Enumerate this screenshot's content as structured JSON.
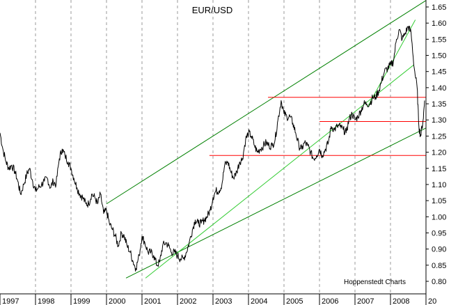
{
  "chart_data": {
    "type": "line",
    "title": "EUR/USD",
    "annotation": "Hoppenstedt Charts",
    "x_tick_labels": [
      "1997",
      "1998",
      "1999",
      "2000",
      "2001",
      "2002",
      "2003",
      "2004",
      "2005",
      "2006",
      "2007",
      "2008",
      "20"
    ],
    "y_tick_labels": [
      "1.65",
      "1.60",
      "1.55",
      "1.50",
      "1.45",
      "1.40",
      "1.35",
      "1.30",
      "1.25",
      "1.20",
      "1.15",
      "1.10",
      "1.05",
      "1.00",
      "0.95",
      "0.90",
      "0.85",
      "0.80"
    ],
    "ylim": [
      0.79,
      1.67
    ],
    "xlim": [
      1997.0,
      2009.15
    ],
    "grid": "vertical-dashed",
    "series": [
      {
        "name": "EUR/USD",
        "color": "#000000",
        "points": [
          [
            1997.0,
            1.26
          ],
          [
            1997.08,
            1.21
          ],
          [
            1997.17,
            1.17
          ],
          [
            1997.25,
            1.15
          ],
          [
            1997.33,
            1.16
          ],
          [
            1997.42,
            1.14
          ],
          [
            1997.5,
            1.11
          ],
          [
            1997.58,
            1.07
          ],
          [
            1997.67,
            1.1
          ],
          [
            1997.75,
            1.13
          ],
          [
            1997.83,
            1.15
          ],
          [
            1997.92,
            1.11
          ],
          [
            1998.0,
            1.08
          ],
          [
            1998.08,
            1.09
          ],
          [
            1998.17,
            1.1
          ],
          [
            1998.25,
            1.11
          ],
          [
            1998.33,
            1.12
          ],
          [
            1998.42,
            1.09
          ],
          [
            1998.5,
            1.11
          ],
          [
            1998.58,
            1.1
          ],
          [
            1998.67,
            1.18
          ],
          [
            1998.75,
            1.21
          ],
          [
            1998.83,
            1.19
          ],
          [
            1998.92,
            1.17
          ],
          [
            1999.0,
            1.15
          ],
          [
            1999.08,
            1.12
          ],
          [
            1999.17,
            1.09
          ],
          [
            1999.25,
            1.07
          ],
          [
            1999.33,
            1.06
          ],
          [
            1999.42,
            1.04
          ],
          [
            1999.5,
            1.04
          ],
          [
            1999.58,
            1.07
          ],
          [
            1999.67,
            1.06
          ],
          [
            1999.75,
            1.04
          ],
          [
            1999.83,
            1.07
          ],
          [
            1999.92,
            1.01
          ],
          [
            2000.0,
            1.02
          ],
          [
            2000.08,
            0.98
          ],
          [
            2000.17,
            0.96
          ],
          [
            2000.25,
            0.94
          ],
          [
            2000.33,
            0.91
          ],
          [
            2000.42,
            0.95
          ],
          [
            2000.5,
            0.94
          ],
          [
            2000.58,
            0.91
          ],
          [
            2000.67,
            0.89
          ],
          [
            2000.75,
            0.86
          ],
          [
            2000.83,
            0.84
          ],
          [
            2000.92,
            0.88
          ],
          [
            2001.0,
            0.94
          ],
          [
            2001.08,
            0.92
          ],
          [
            2001.17,
            0.89
          ],
          [
            2001.25,
            0.89
          ],
          [
            2001.33,
            0.88
          ],
          [
            2001.42,
            0.85
          ],
          [
            2001.5,
            0.86
          ],
          [
            2001.58,
            0.91
          ],
          [
            2001.67,
            0.92
          ],
          [
            2001.75,
            0.91
          ],
          [
            2001.83,
            0.89
          ],
          [
            2001.92,
            0.89
          ],
          [
            2002.0,
            0.88
          ],
          [
            2002.08,
            0.87
          ],
          [
            2002.17,
            0.87
          ],
          [
            2002.25,
            0.89
          ],
          [
            2002.33,
            0.92
          ],
          [
            2002.42,
            0.96
          ],
          [
            2002.5,
            0.99
          ],
          [
            2002.58,
            0.98
          ],
          [
            2002.67,
            0.98
          ],
          [
            2002.75,
            0.99
          ],
          [
            2002.83,
            1.0
          ],
          [
            2002.92,
            1.02
          ],
          [
            2003.0,
            1.06
          ],
          [
            2003.08,
            1.08
          ],
          [
            2003.17,
            1.08
          ],
          [
            2003.25,
            1.1
          ],
          [
            2003.33,
            1.16
          ],
          [
            2003.42,
            1.17
          ],
          [
            2003.5,
            1.14
          ],
          [
            2003.58,
            1.12
          ],
          [
            2003.67,
            1.14
          ],
          [
            2003.75,
            1.17
          ],
          [
            2003.83,
            1.18
          ],
          [
            2003.92,
            1.24
          ],
          [
            2004.0,
            1.26
          ],
          [
            2004.08,
            1.25
          ],
          [
            2004.17,
            1.22
          ],
          [
            2004.25,
            1.2
          ],
          [
            2004.33,
            1.21
          ],
          [
            2004.42,
            1.22
          ],
          [
            2004.5,
            1.23
          ],
          [
            2004.58,
            1.22
          ],
          [
            2004.67,
            1.22
          ],
          [
            2004.75,
            1.24
          ],
          [
            2004.83,
            1.3
          ],
          [
            2004.92,
            1.36
          ],
          [
            2005.0,
            1.32
          ],
          [
            2005.08,
            1.31
          ],
          [
            2005.17,
            1.31
          ],
          [
            2005.25,
            1.29
          ],
          [
            2005.33,
            1.26
          ],
          [
            2005.42,
            1.22
          ],
          [
            2005.5,
            1.21
          ],
          [
            2005.58,
            1.23
          ],
          [
            2005.67,
            1.22
          ],
          [
            2005.75,
            1.2
          ],
          [
            2005.83,
            1.18
          ],
          [
            2005.92,
            1.19
          ],
          [
            2006.0,
            1.21
          ],
          [
            2006.08,
            1.19
          ],
          [
            2006.17,
            1.21
          ],
          [
            2006.25,
            1.23
          ],
          [
            2006.33,
            1.28
          ],
          [
            2006.42,
            1.27
          ],
          [
            2006.5,
            1.28
          ],
          [
            2006.58,
            1.28
          ],
          [
            2006.67,
            1.27
          ],
          [
            2006.75,
            1.26
          ],
          [
            2006.83,
            1.3
          ],
          [
            2006.92,
            1.32
          ],
          [
            2007.0,
            1.3
          ],
          [
            2007.08,
            1.31
          ],
          [
            2007.17,
            1.33
          ],
          [
            2007.25,
            1.35
          ],
          [
            2007.33,
            1.35
          ],
          [
            2007.42,
            1.35
          ],
          [
            2007.5,
            1.37
          ],
          [
            2007.58,
            1.37
          ],
          [
            2007.67,
            1.39
          ],
          [
            2007.75,
            1.42
          ],
          [
            2007.83,
            1.45
          ],
          [
            2007.92,
            1.46
          ],
          [
            2008.0,
            1.47
          ],
          [
            2008.08,
            1.48
          ],
          [
            2008.17,
            1.55
          ],
          [
            2008.25,
            1.58
          ],
          [
            2008.33,
            1.55
          ],
          [
            2008.42,
            1.57
          ],
          [
            2008.5,
            1.59
          ],
          [
            2008.58,
            1.57
          ],
          [
            2008.67,
            1.46
          ],
          [
            2008.75,
            1.4
          ],
          [
            2008.8,
            1.28
          ],
          [
            2008.85,
            1.25
          ],
          [
            2008.92,
            1.3
          ],
          [
            2008.96,
            1.36
          ]
        ]
      }
    ],
    "trendlines": [
      {
        "name": "upper-channel",
        "color": "#008000",
        "from": [
          2000.0,
          1.04
        ],
        "to": [
          2009.15,
          1.67
        ]
      },
      {
        "name": "lower-channel",
        "color": "#008000",
        "from": [
          2000.55,
          0.81
        ],
        "to": [
          2009.15,
          1.275
        ]
      },
      {
        "name": "support-trend",
        "color": "#33cc33",
        "from": [
          2001.1,
          0.81
        ],
        "to": [
          2008.65,
          1.47
        ]
      },
      {
        "name": "steep-trend",
        "color": "#33cc33",
        "from": [
          2007.35,
          1.34
        ],
        "to": [
          2008.7,
          1.61
        ]
      }
    ],
    "horizontal_levels": [
      {
        "name": "level-1-37",
        "color": "#ff0000",
        "value": 1.37,
        "x_from": 2004.55,
        "x_to": 2009.15
      },
      {
        "name": "level-1-295",
        "color": "#ff0000",
        "value": 1.295,
        "x_from": 2006.0,
        "x_to": 2009.15
      },
      {
        "name": "level-1-19",
        "color": "#ff0000",
        "value": 1.19,
        "x_from": 2002.9,
        "x_to": 2009.15
      }
    ]
  }
}
